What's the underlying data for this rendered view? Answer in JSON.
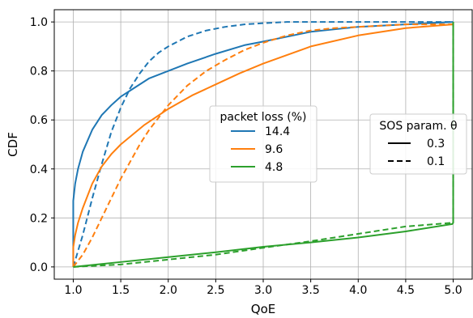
{
  "chart_data": {
    "type": "line",
    "xlabel": "QoE",
    "ylabel": "CDF",
    "xlim": [
      0.8,
      5.2
    ],
    "ylim": [
      -0.05,
      1.05
    ],
    "xticks": [
      1.0,
      1.5,
      2.0,
      2.5,
      3.0,
      3.5,
      4.0,
      4.5,
      5.0
    ],
    "xtick_labels": [
      "1.0",
      "1.5",
      "2.0",
      "2.5",
      "3.0",
      "3.5",
      "4.0",
      "4.5",
      "5.0"
    ],
    "yticks": [
      0.0,
      0.2,
      0.4,
      0.6,
      0.8,
      1.0
    ],
    "ytick_labels": [
      "0.0",
      "0.2",
      "0.4",
      "0.6",
      "0.8",
      "1.0"
    ],
    "grid": true,
    "colors": {
      "14.4": "#1f77b4",
      "9.6": "#ff7f0e",
      "4.8": "#2ca02c"
    },
    "legend_loss": {
      "title": "packet loss (%)",
      "placement": "center",
      "entries": [
        {
          "label": "14.4",
          "color": "#1f77b4"
        },
        {
          "label": "9.6",
          "color": "#ff7f0e"
        },
        {
          "label": "4.8",
          "color": "#2ca02c"
        }
      ]
    },
    "legend_sos": {
      "title": "SOS param. θ",
      "placement": "center-right",
      "entries": [
        {
          "label": "0.3",
          "style": "solid"
        },
        {
          "label": "0.1",
          "style": "dashed"
        }
      ]
    },
    "series": [
      {
        "loss": "14.4",
        "theta": "0.3",
        "style": "solid",
        "color": "#1f77b4",
        "x": [
          1.0,
          1.0,
          1.02,
          1.05,
          1.1,
          1.2,
          1.3,
          1.4,
          1.5,
          1.6,
          1.8,
          2.0,
          2.2,
          2.5,
          2.8,
          3.0,
          3.5,
          4.0,
          4.5,
          5.0
        ],
        "y": [
          0.0,
          0.27,
          0.34,
          0.4,
          0.47,
          0.56,
          0.62,
          0.66,
          0.695,
          0.72,
          0.77,
          0.8,
          0.83,
          0.87,
          0.905,
          0.92,
          0.96,
          0.98,
          0.99,
          1.0
        ]
      },
      {
        "loss": "14.4",
        "theta": "0.1",
        "style": "dashed",
        "color": "#1f77b4",
        "x": [
          1.0,
          1.1,
          1.2,
          1.3,
          1.4,
          1.5,
          1.6,
          1.7,
          1.8,
          1.9,
          2.0,
          2.2,
          2.4,
          2.6,
          2.8,
          3.0,
          3.25,
          3.5,
          4.0,
          5.0
        ],
        "y": [
          0.0,
          0.13,
          0.28,
          0.42,
          0.55,
          0.65,
          0.73,
          0.79,
          0.84,
          0.875,
          0.9,
          0.94,
          0.965,
          0.98,
          0.99,
          0.995,
          1.0,
          1.0,
          1.0,
          1.0
        ]
      },
      {
        "loss": "9.6",
        "theta": "0.3",
        "style": "solid",
        "color": "#ff7f0e",
        "x": [
          1.0,
          1.0,
          1.02,
          1.05,
          1.1,
          1.2,
          1.3,
          1.4,
          1.5,
          1.75,
          2.0,
          2.25,
          2.5,
          2.75,
          3.0,
          3.5,
          4.0,
          4.5,
          5.0
        ],
        "y": [
          0.0,
          0.08,
          0.13,
          0.18,
          0.24,
          0.34,
          0.41,
          0.46,
          0.5,
          0.58,
          0.645,
          0.7,
          0.745,
          0.79,
          0.83,
          0.9,
          0.945,
          0.975,
          0.99
        ]
      },
      {
        "loss": "9.6",
        "theta": "0.1",
        "style": "dashed",
        "color": "#ff7f0e",
        "x": [
          1.0,
          1.1,
          1.2,
          1.3,
          1.4,
          1.5,
          1.6,
          1.7,
          1.8,
          2.0,
          2.2,
          2.4,
          2.6,
          2.8,
          3.0,
          3.25,
          3.5,
          3.75,
          4.0,
          4.5,
          5.0
        ],
        "y": [
          0.0,
          0.05,
          0.12,
          0.2,
          0.28,
          0.36,
          0.43,
          0.5,
          0.56,
          0.66,
          0.74,
          0.8,
          0.845,
          0.885,
          0.915,
          0.945,
          0.965,
          0.975,
          0.98,
          0.99,
          0.99
        ]
      },
      {
        "loss": "4.8",
        "theta": "0.3",
        "style": "solid",
        "color": "#2ca02c",
        "x": [
          1.0,
          1.5,
          2.0,
          2.5,
          3.0,
          3.5,
          4.0,
          4.5,
          4.99,
          5.0,
          5.0
        ],
        "y": [
          0.0,
          0.02,
          0.04,
          0.06,
          0.082,
          0.1,
          0.12,
          0.145,
          0.175,
          0.18,
          1.0
        ]
      },
      {
        "loss": "4.8",
        "theta": "0.1",
        "style": "dashed",
        "color": "#2ca02c",
        "x": [
          1.0,
          1.5,
          2.0,
          2.5,
          3.0,
          3.5,
          4.0,
          4.5,
          4.99,
          5.0,
          5.0
        ],
        "y": [
          0.0,
          0.01,
          0.03,
          0.05,
          0.078,
          0.105,
          0.135,
          0.165,
          0.18,
          0.18,
          1.0
        ]
      }
    ]
  }
}
